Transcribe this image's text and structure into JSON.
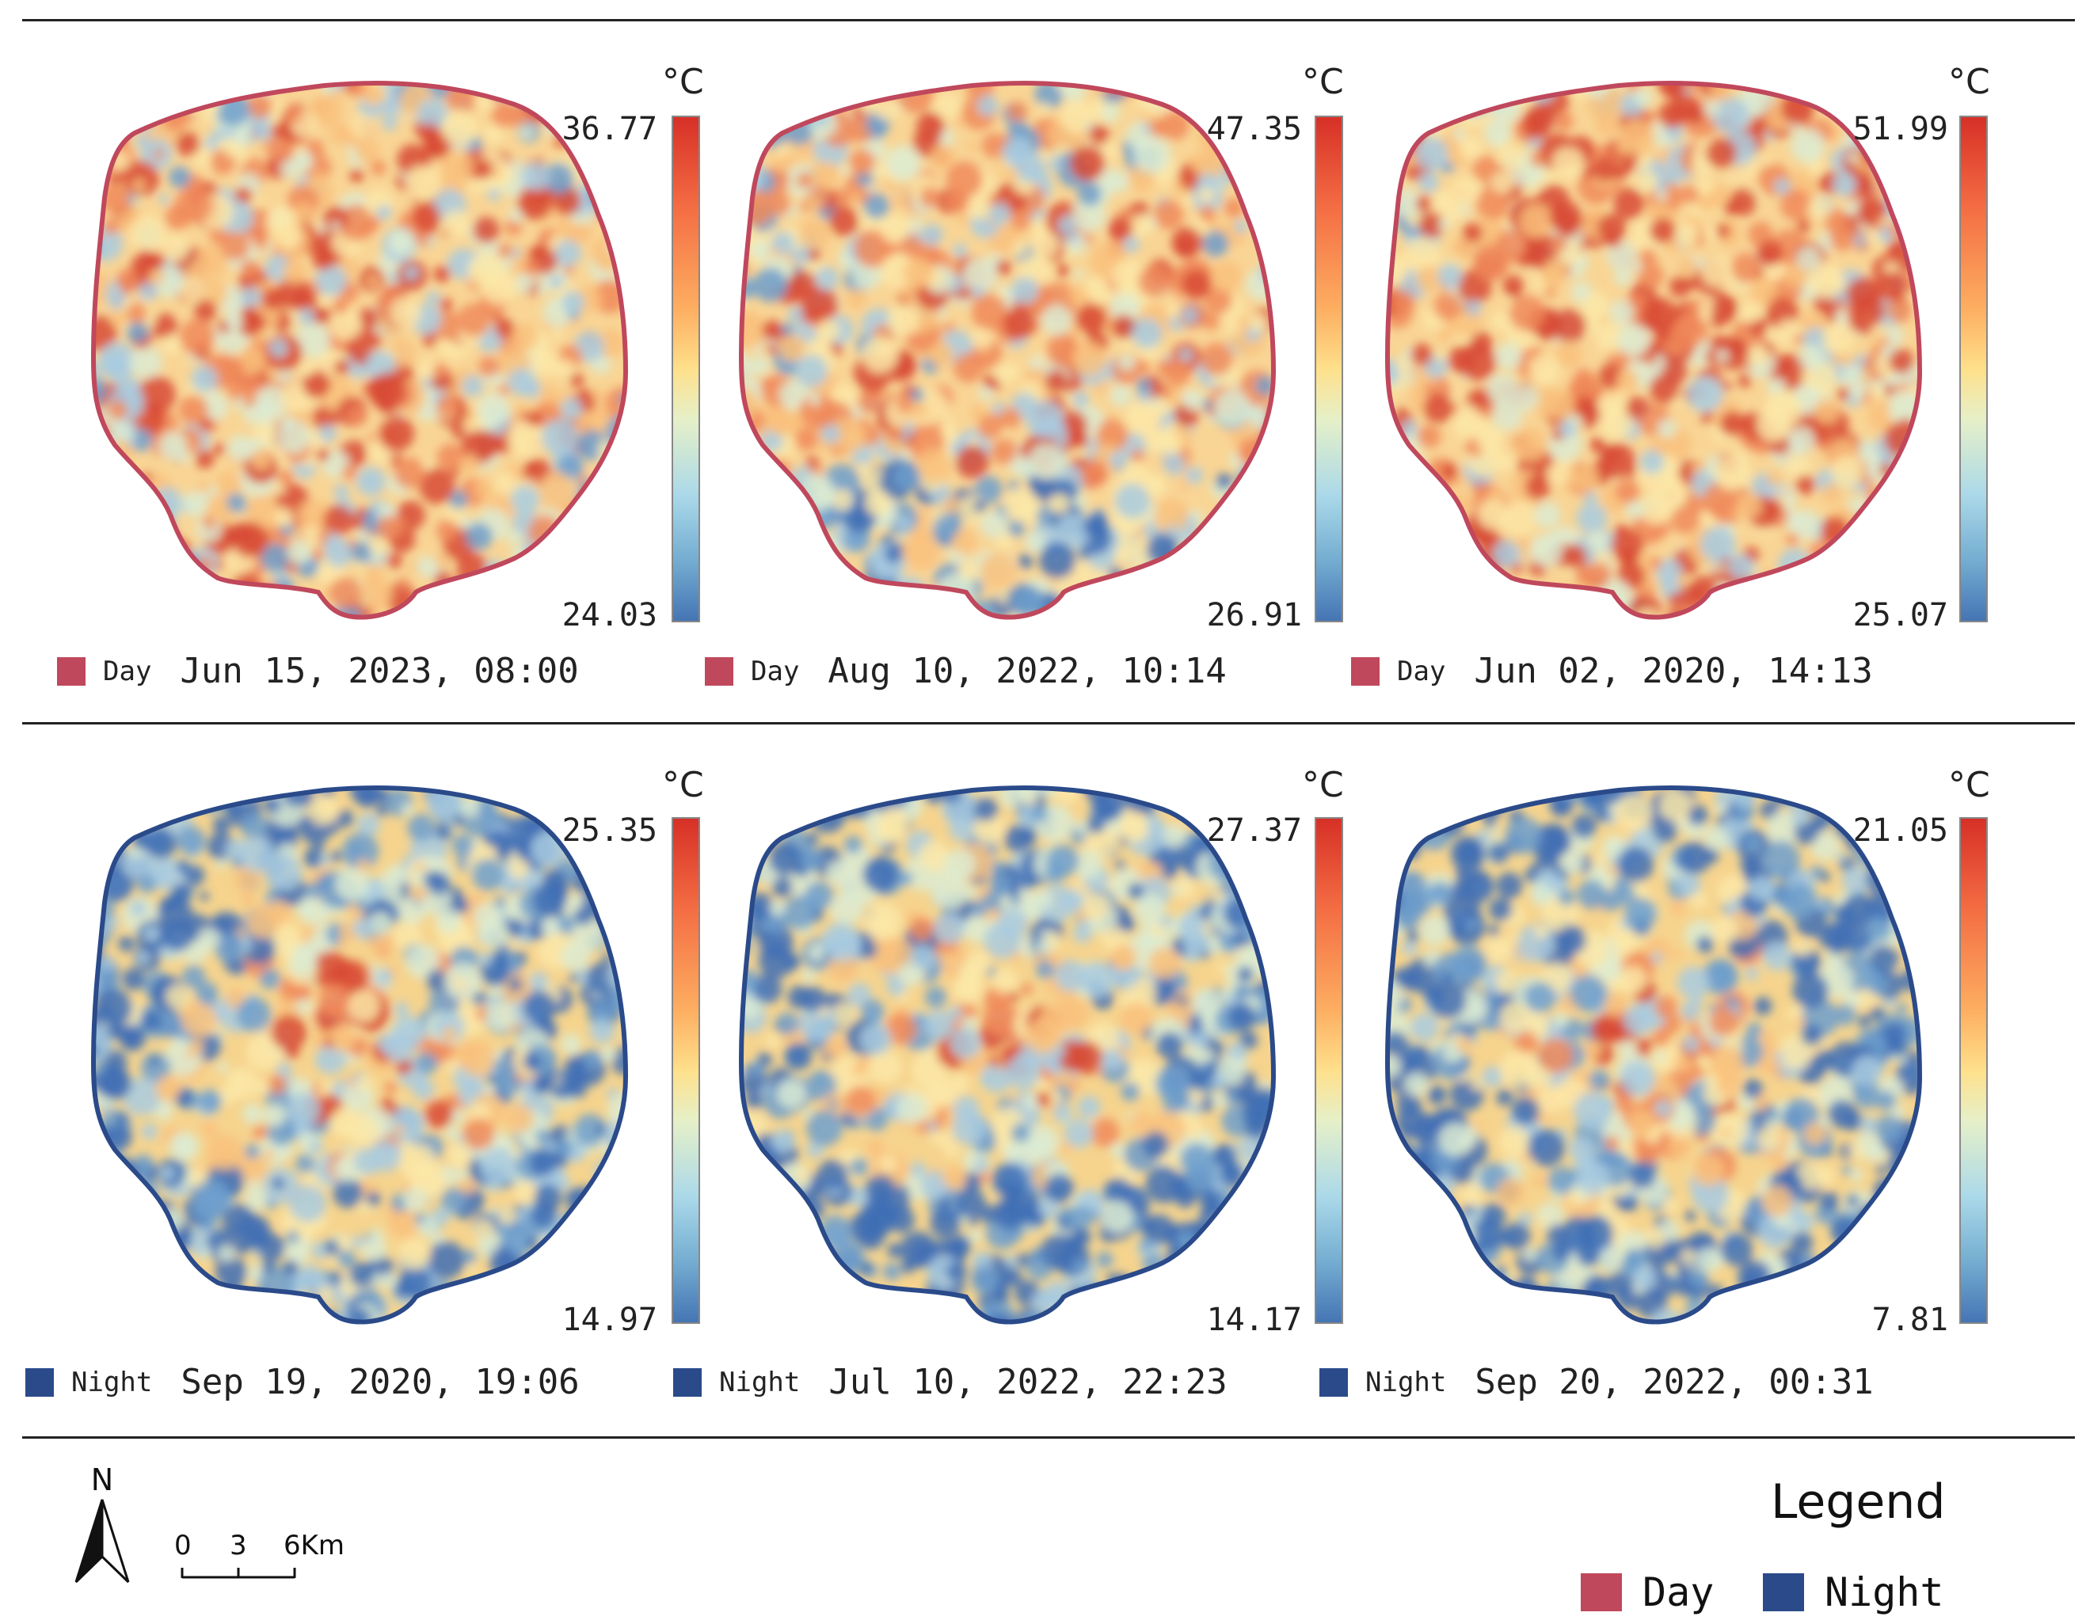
{
  "colors": {
    "day": "#c0485c",
    "night": "#2a4a8a"
  },
  "unit": "°C",
  "panels": [
    {
      "period": "Day",
      "datetime": "Jun 15, 2023, 08:00",
      "max": "36.77",
      "min": "24.03"
    },
    {
      "period": "Day",
      "datetime": "Aug 10, 2022, 10:14",
      "max": "47.35",
      "min": "26.91"
    },
    {
      "period": "Day",
      "datetime": "Jun 02, 2020, 14:13",
      "max": "51.99",
      "min": "25.07"
    },
    {
      "period": "Night",
      "datetime": "Sep 19, 2020, 19:06",
      "max": "25.35",
      "min": "14.97"
    },
    {
      "period": "Night",
      "datetime": "Jul 10, 2022, 22:23",
      "max": "27.37",
      "min": "14.17"
    },
    {
      "period": "Night",
      "datetime": "Sep 20, 2022, 00:31",
      "max": "21.05",
      "min": "7.81"
    }
  ],
  "north_label": "N",
  "scale_labels": [
    "0",
    "3",
    "6Km"
  ],
  "legend": {
    "title": "Legend",
    "day": "Day",
    "night": "Night"
  }
}
